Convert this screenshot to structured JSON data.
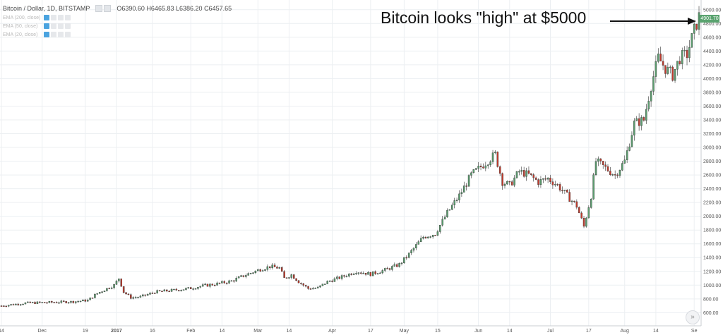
{
  "header": {
    "symbol": "Bitcoin / Dollar, 1D, BITSTAMP",
    "open": "O6390.60",
    "high": "H6465.83",
    "low": "L6386.20",
    "close": "C6457.65"
  },
  "indicators": [
    {
      "label": "EMA (200, close)"
    },
    {
      "label": "EMA (50, close)"
    },
    {
      "label": "EMA (20, close)"
    }
  ],
  "annotation": "Bitcoin looks \"high\" at $5000",
  "last_price": "4901.70",
  "scroll_icon": "»",
  "colors": {
    "up": "#5b9e6f",
    "down": "#c0392b",
    "grid": "#eceff2",
    "arrow": "#111111"
  },
  "chart_data": {
    "type": "candlestick",
    "y_ticks": [
      600,
      800,
      1000,
      1200,
      1400,
      1600,
      1800,
      2000,
      2200,
      2400,
      2600,
      2800,
      3000,
      3200,
      3400,
      3600,
      3800,
      4000,
      4200,
      4400,
      4600,
      4800,
      5000
    ],
    "y_tick_labels": [
      "600.00",
      "800.00",
      "1000.00",
      "1200.00",
      "1400.00",
      "1600.00",
      "1800.00",
      "2000.00",
      "2200.00",
      "2400.00",
      "2600.00",
      "2800.00",
      "3000.00",
      "3200.00",
      "3400.00",
      "3600.00",
      "3800.00",
      "4000.00",
      "4200.00",
      "4400.00",
      "4600.00",
      "4800.00",
      "5000.00"
    ],
    "ylim": [
      450,
      5100
    ],
    "x_ticks": [
      {
        "label": "14",
        "day": 0
      },
      {
        "label": "Dec",
        "day": 17
      },
      {
        "label": "19",
        "day": 35
      },
      {
        "label": "2017",
        "day": 48
      },
      {
        "label": "16",
        "day": 63
      },
      {
        "label": "Feb",
        "day": 79
      },
      {
        "label": "14",
        "day": 92
      },
      {
        "label": "Mar",
        "day": 107
      },
      {
        "label": "14",
        "day": 120
      },
      {
        "label": "Apr",
        "day": 138
      },
      {
        "label": "17",
        "day": 154
      },
      {
        "label": "May",
        "day": 168
      },
      {
        "label": "15",
        "day": 182
      },
      {
        "label": "Jun",
        "day": 199
      },
      {
        "label": "14",
        "day": 212
      },
      {
        "label": "Jul",
        "day": 229
      },
      {
        "label": "17",
        "day": 245
      },
      {
        "label": "Aug",
        "day": 260
      },
      {
        "label": "14",
        "day": 273
      },
      {
        "label": "Se",
        "day": 289
      }
    ],
    "day_range": [
      0,
      291
    ],
    "anchors": [
      [
        0,
        700
      ],
      [
        10,
        740
      ],
      [
        20,
        750
      ],
      [
        30,
        760
      ],
      [
        36,
        780
      ],
      [
        40,
        880
      ],
      [
        44,
        950
      ],
      [
        47,
        1000
      ],
      [
        49,
        1100
      ],
      [
        51,
        900
      ],
      [
        54,
        820
      ],
      [
        58,
        830
      ],
      [
        64,
        900
      ],
      [
        70,
        920
      ],
      [
        78,
        950
      ],
      [
        84,
        990
      ],
      [
        90,
        1020
      ],
      [
        96,
        1060
      ],
      [
        102,
        1150
      ],
      [
        108,
        1230
      ],
      [
        112,
        1270
      ],
      [
        116,
        1250
      ],
      [
        118,
        1100
      ],
      [
        121,
        1150
      ],
      [
        124,
        1050
      ],
      [
        128,
        950
      ],
      [
        132,
        960
      ],
      [
        136,
        1050
      ],
      [
        142,
        1120
      ],
      [
        148,
        1200
      ],
      [
        154,
        1160
      ],
      [
        160,
        1220
      ],
      [
        166,
        1300
      ],
      [
        170,
        1450
      ],
      [
        176,
        1700
      ],
      [
        181,
        1750
      ],
      [
        186,
        2050
      ],
      [
        191,
        2300
      ],
      [
        196,
        2600
      ],
      [
        201,
        2750
      ],
      [
        206,
        2900
      ],
      [
        209,
        2500
      ],
      [
        212,
        2450
      ],
      [
        216,
        2650
      ],
      [
        220,
        2600
      ],
      [
        224,
        2500
      ],
      [
        228,
        2550
      ],
      [
        232,
        2450
      ],
      [
        236,
        2300
      ],
      [
        240,
        2150
      ],
      [
        243,
        1850
      ],
      [
        246,
        2300
      ],
      [
        248,
        2800
      ],
      [
        252,
        2700
      ],
      [
        256,
        2600
      ],
      [
        260,
        2800
      ],
      [
        264,
        3350
      ],
      [
        268,
        3400
      ],
      [
        271,
        3900
      ],
      [
        274,
        4300
      ],
      [
        277,
        4150
      ],
      [
        280,
        4050
      ],
      [
        283,
        4300
      ],
      [
        286,
        4350
      ],
      [
        289,
        4700
      ],
      [
        291,
        4900
      ]
    ]
  }
}
